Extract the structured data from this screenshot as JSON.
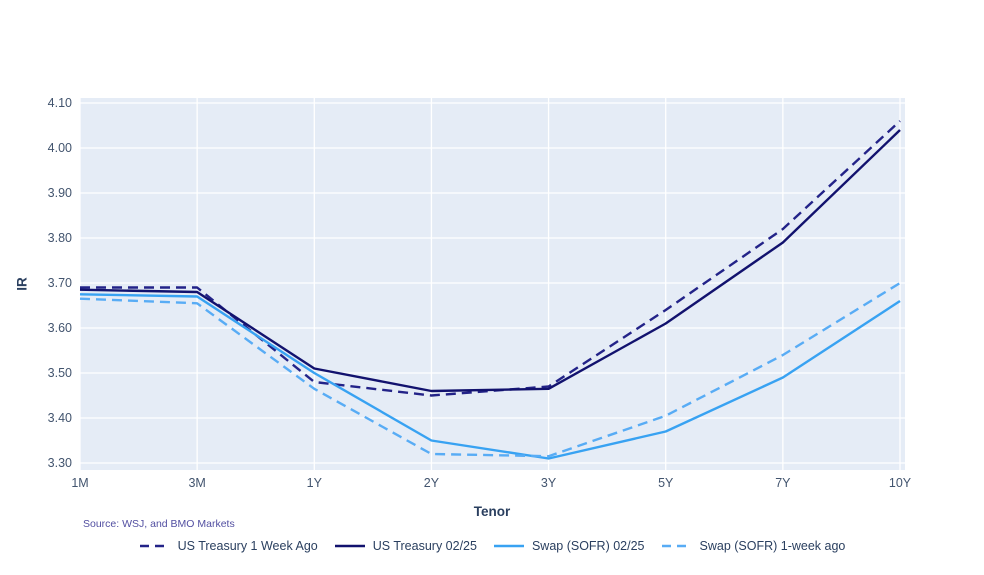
{
  "figure": {
    "y_axis_title": "IR",
    "x_axis_title": "Tenor",
    "source_note": "Source: WSJ, and BMO Markets"
  },
  "chart_data": {
    "type": "line",
    "title": "",
    "xlabel": "Tenor",
    "ylabel": "IR",
    "categories": [
      "1M",
      "3M",
      "1Y",
      "2Y",
      "3Y",
      "5Y",
      "7Y",
      "10Y"
    ],
    "ylim": [
      3.3,
      4.1
    ],
    "ytick_labels": [
      "3.30",
      "3.40",
      "3.50",
      "3.60",
      "3.70",
      "3.80",
      "3.90",
      "4.00",
      "4.10"
    ],
    "grid": true,
    "plot_bg": "#e5ecf6",
    "grid_color": "#ffffff",
    "tick_color": "#42546e",
    "legend_position": "bottom",
    "source_note": "Source: WSJ, and BMO Markets",
    "series": [
      {
        "name": "US Treasury 1 Week Ago",
        "color": "#232388",
        "dash": "dashed",
        "values": [
          3.69,
          3.69,
          3.48,
          3.45,
          3.47,
          3.64,
          3.82,
          4.06
        ]
      },
      {
        "name": "US Treasury 02/25",
        "color": "#12126e",
        "dash": "solid",
        "values": [
          3.685,
          3.68,
          3.51,
          3.46,
          3.465,
          3.61,
          3.79,
          4.04
        ]
      },
      {
        "name": "Swap (SOFR) 02/25",
        "color": "#38a2f2",
        "dash": "solid",
        "values": [
          3.675,
          3.67,
          3.5,
          3.35,
          3.31,
          3.37,
          3.49,
          3.66
        ]
      },
      {
        "name": "Swap (SOFR) 1-week ago",
        "color": "#58acf5",
        "dash": "dashed",
        "values": [
          3.665,
          3.655,
          3.465,
          3.32,
          3.315,
          3.405,
          3.54,
          3.7
        ]
      }
    ]
  }
}
